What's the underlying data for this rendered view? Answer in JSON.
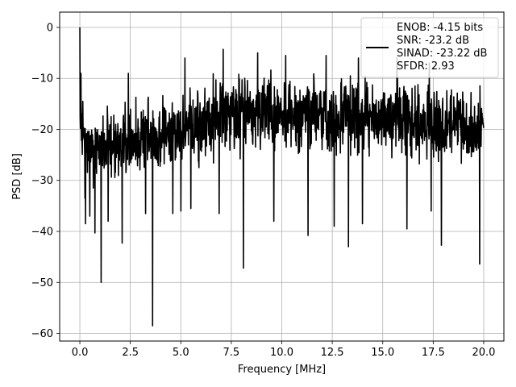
{
  "chart_data": {
    "type": "line",
    "title": "",
    "xlabel": "Frequency [MHz]",
    "ylabel": "PSD [dB]",
    "xlim": [
      -1.0,
      21.0
    ],
    "ylim": [
      -61.5,
      3.0
    ],
    "xticks": [
      0.0,
      2.5,
      5.0,
      7.5,
      10.0,
      12.5,
      15.0,
      17.5,
      20.0
    ],
    "xtick_labels": [
      "0.0",
      "2.5",
      "5.0",
      "7.5",
      "10.0",
      "12.5",
      "15.0",
      "17.5",
      "20.0"
    ],
    "yticks": [
      0,
      -10,
      -20,
      -30,
      -40,
      -50,
      -60
    ],
    "ytick_labels": [
      "0",
      "−10",
      "−20",
      "−30",
      "−40",
      "−50",
      "−60"
    ],
    "grid": true,
    "legend_position": "top-right",
    "legend_lines": [
      "ENOB: -4.15 bits",
      "SNR: -23.2 dB",
      "SINAD: -23.22 dB",
      "SFDR: 2.93"
    ],
    "series": [
      {
        "color": "#000000",
        "x_range": [
          0.0,
          20.0
        ],
        "num_points": 1500,
        "noise_profile": {
          "x": [
            0,
            0.5,
            1.0,
            2.0,
            3.0,
            4.0,
            5.0,
            6.0,
            7.0,
            8.0,
            9.0,
            10.0,
            11.0,
            12.0,
            13.0,
            14.0,
            15.0,
            16.0,
            17.0,
            18.0,
            19.0,
            20.0
          ],
          "top": [
            -13,
            -15,
            -14,
            -13,
            -12,
            -11,
            -10,
            -8,
            -7,
            -7,
            -7,
            -7,
            -7,
            -7,
            -8,
            -8,
            -8,
            -8,
            -9,
            -9,
            -10,
            -10
          ],
          "bottom": [
            -28,
            -32,
            -33,
            -33,
            -31,
            -30,
            -29,
            -29,
            -28,
            -27,
            -27,
            -27,
            -27,
            -27,
            -27,
            -27,
            -27,
            -28,
            -28,
            -29,
            -29,
            -29
          ]
        },
        "peaks": [
          {
            "x": 0.0,
            "y": 0.0
          },
          {
            "x": 0.05,
            "y": -9.0
          },
          {
            "x": 0.15,
            "y": -14.5
          },
          {
            "x": 2.4,
            "y": -9.0
          },
          {
            "x": 5.2,
            "y": -6.0
          },
          {
            "x": 6.9,
            "y": -5.0
          },
          {
            "x": 7.1,
            "y": -4.3
          },
          {
            "x": 8.8,
            "y": -5.0
          },
          {
            "x": 10.2,
            "y": -5.5
          },
          {
            "x": 12.2,
            "y": -5.5
          },
          {
            "x": 13.8,
            "y": -6.0
          },
          {
            "x": 15.7,
            "y": -6.0
          },
          {
            "x": 17.3,
            "y": -7.0
          }
        ],
        "dips": [
          {
            "x": 0.25,
            "y": -33.5
          },
          {
            "x": 0.28,
            "y": -38.5
          },
          {
            "x": 0.5,
            "y": -37.0
          },
          {
            "x": 0.75,
            "y": -40.3
          },
          {
            "x": 1.05,
            "y": -50.0
          },
          {
            "x": 1.4,
            "y": -38.0
          },
          {
            "x": 2.1,
            "y": -42.3
          },
          {
            "x": 3.25,
            "y": -36.5
          },
          {
            "x": 3.6,
            "y": -58.5
          },
          {
            "x": 4.6,
            "y": -36.5
          },
          {
            "x": 5.0,
            "y": -36.0
          },
          {
            "x": 5.5,
            "y": -35.5
          },
          {
            "x": 6.9,
            "y": -36.5
          },
          {
            "x": 8.1,
            "y": -47.2
          },
          {
            "x": 9.6,
            "y": -38.0
          },
          {
            "x": 11.3,
            "y": -40.8
          },
          {
            "x": 12.6,
            "y": -39.0
          },
          {
            "x": 13.3,
            "y": -43.0
          },
          {
            "x": 14.0,
            "y": -38.5
          },
          {
            "x": 16.2,
            "y": -39.5
          },
          {
            "x": 17.4,
            "y": -36.0
          },
          {
            "x": 17.9,
            "y": -42.7
          },
          {
            "x": 19.8,
            "y": -46.4
          }
        ]
      }
    ]
  }
}
